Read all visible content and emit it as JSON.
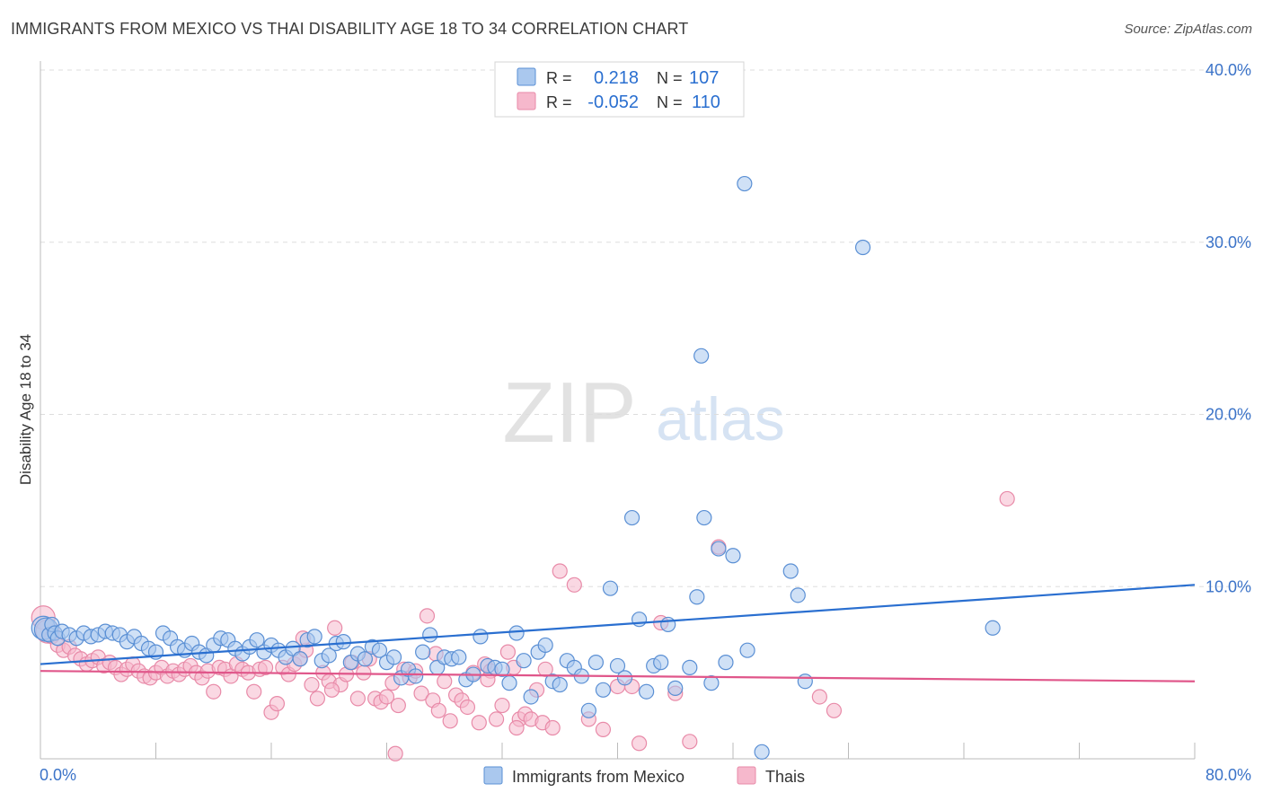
{
  "header": {
    "title": "IMMIGRANTS FROM MEXICO VS THAI DISABILITY AGE 18 TO 34 CORRELATION CHART",
    "source": "Source: ZipAtlas.com"
  },
  "watermark": {
    "zip": "ZIP",
    "atlas": "atlas"
  },
  "colors": {
    "blue_fill": "#aac8ee",
    "blue_stroke": "#5a8fd4",
    "blue_line": "#2a6fd0",
    "pink_fill": "#f6b8cc",
    "pink_stroke": "#e88aa8",
    "pink_line": "#e0568a",
    "tick_label": "#3b73c8",
    "grid": "#dddddd"
  },
  "legend_top": {
    "rows": [
      {
        "r_label": "R =",
        "r_value": "0.218",
        "n_label": "N =",
        "n_value": "107",
        "series": "blue"
      },
      {
        "r_label": "R =",
        "r_value": "-0.052",
        "n_label": "N =",
        "n_value": "110",
        "series": "pink"
      }
    ]
  },
  "chart_data": {
    "type": "scatter",
    "title": "IMMIGRANTS FROM MEXICO VS THAI DISABILITY AGE 18 TO 34 CORRELATION CHART",
    "xlabel": "",
    "ylabel": "Disability Age 18 to 34",
    "xlim": [
      0,
      80
    ],
    "ylim": [
      0,
      40
    ],
    "x_tick_labels": [
      "0.0%",
      "80.0%"
    ],
    "y_ticks": [
      10,
      20,
      30,
      40
    ],
    "y_tick_labels": [
      "10.0%",
      "20.0%",
      "30.0%",
      "40.0%"
    ],
    "grid": true,
    "legend_position": "bottom-center",
    "series": [
      {
        "name": "Immigrants from Mexico",
        "color": "#aac8ee",
        "trend": {
          "x": [
            0,
            80
          ],
          "y": [
            5.5,
            10.1
          ]
        },
        "points": [
          [
            0.2,
            7.6
          ],
          [
            0.4,
            7.5
          ],
          [
            0.6,
            7.2
          ],
          [
            0.8,
            7.8
          ],
          [
            1.0,
            7.3
          ],
          [
            1.2,
            7.0
          ],
          [
            1.5,
            7.4
          ],
          [
            2.0,
            7.2
          ],
          [
            2.5,
            7.0
          ],
          [
            3.0,
            7.3
          ],
          [
            3.5,
            7.1
          ],
          [
            4.0,
            7.2
          ],
          [
            4.5,
            7.4
          ],
          [
            5.0,
            7.3
          ],
          [
            5.5,
            7.2
          ],
          [
            6.0,
            6.8
          ],
          [
            6.5,
            7.1
          ],
          [
            7.0,
            6.7
          ],
          [
            7.5,
            6.4
          ],
          [
            8.0,
            6.2
          ],
          [
            8.5,
            7.3
          ],
          [
            9.0,
            7.0
          ],
          [
            9.5,
            6.5
          ],
          [
            10.0,
            6.3
          ],
          [
            10.5,
            6.7
          ],
          [
            11.0,
            6.2
          ],
          [
            11.5,
            6.0
          ],
          [
            12.0,
            6.6
          ],
          [
            12.5,
            7.0
          ],
          [
            13.0,
            6.9
          ],
          [
            13.5,
            6.4
          ],
          [
            14.0,
            6.1
          ],
          [
            14.5,
            6.5
          ],
          [
            15.0,
            6.9
          ],
          [
            15.5,
            6.2
          ],
          [
            16.0,
            6.6
          ],
          [
            16.5,
            6.3
          ],
          [
            17.0,
            5.9
          ],
          [
            17.5,
            6.4
          ],
          [
            18.0,
            5.8
          ],
          [
            18.5,
            6.9
          ],
          [
            19.0,
            7.1
          ],
          [
            19.5,
            5.7
          ],
          [
            20.0,
            6.0
          ],
          [
            20.5,
            6.7
          ],
          [
            21.0,
            6.8
          ],
          [
            21.5,
            5.6
          ],
          [
            22.0,
            6.1
          ],
          [
            22.5,
            5.8
          ],
          [
            23.0,
            6.5
          ],
          [
            23.5,
            6.3
          ],
          [
            24.0,
            5.6
          ],
          [
            24.5,
            5.9
          ],
          [
            25.0,
            4.7
          ],
          [
            25.5,
            5.2
          ],
          [
            26.0,
            4.8
          ],
          [
            26.5,
            6.2
          ],
          [
            27.0,
            7.2
          ],
          [
            27.5,
            5.3
          ],
          [
            28.0,
            5.9
          ],
          [
            28.5,
            5.8
          ],
          [
            29.0,
            5.9
          ],
          [
            29.5,
            4.6
          ],
          [
            30.0,
            4.9
          ],
          [
            30.5,
            7.1
          ],
          [
            31.0,
            5.4
          ],
          [
            31.5,
            5.3
          ],
          [
            32.0,
            5.2
          ],
          [
            32.5,
            4.4
          ],
          [
            33.0,
            7.3
          ],
          [
            33.5,
            5.7
          ],
          [
            34.0,
            3.6
          ],
          [
            34.5,
            6.2
          ],
          [
            35.0,
            6.6
          ],
          [
            35.5,
            4.5
          ],
          [
            36.0,
            4.3
          ],
          [
            36.5,
            5.7
          ],
          [
            37.0,
            5.3
          ],
          [
            37.5,
            4.8
          ],
          [
            38.0,
            2.8
          ],
          [
            38.5,
            5.6
          ],
          [
            39.0,
            4.0
          ],
          [
            39.5,
            9.9
          ],
          [
            40.0,
            5.4
          ],
          [
            40.5,
            4.7
          ],
          [
            41.0,
            14.0
          ],
          [
            41.5,
            8.1
          ],
          [
            42.0,
            3.9
          ],
          [
            42.5,
            5.4
          ],
          [
            43.0,
            5.6
          ],
          [
            43.5,
            7.8
          ],
          [
            44.0,
            4.1
          ],
          [
            45.0,
            5.3
          ],
          [
            45.5,
            9.4
          ],
          [
            46.0,
            14.0
          ],
          [
            46.5,
            4.4
          ],
          [
            47.0,
            12.2
          ],
          [
            47.5,
            5.6
          ],
          [
            48.0,
            11.8
          ],
          [
            49.0,
            6.3
          ],
          [
            52.0,
            10.9
          ],
          [
            52.5,
            9.5
          ],
          [
            53.0,
            4.5
          ],
          [
            45.8,
            23.4
          ],
          [
            48.8,
            33.4
          ],
          [
            57.0,
            29.7
          ],
          [
            66.0,
            7.6
          ],
          [
            50.0,
            0.4
          ]
        ]
      },
      {
        "name": "Thais",
        "color": "#f6b8cc",
        "trend": {
          "x": [
            0,
            80
          ],
          "y": [
            5.1,
            4.5
          ]
        },
        "points": [
          [
            0.2,
            8.2
          ],
          [
            0.5,
            7.4
          ],
          [
            0.8,
            7.1
          ],
          [
            1.2,
            6.6
          ],
          [
            1.6,
            6.3
          ],
          [
            2.0,
            6.5
          ],
          [
            2.4,
            6.0
          ],
          [
            2.8,
            5.8
          ],
          [
            3.2,
            5.5
          ],
          [
            3.6,
            5.7
          ],
          [
            4.0,
            5.9
          ],
          [
            4.4,
            5.4
          ],
          [
            4.8,
            5.6
          ],
          [
            5.2,
            5.3
          ],
          [
            5.6,
            4.9
          ],
          [
            6.0,
            5.2
          ],
          [
            6.4,
            5.5
          ],
          [
            6.8,
            5.1
          ],
          [
            7.2,
            4.8
          ],
          [
            7.6,
            4.7
          ],
          [
            8.0,
            5.0
          ],
          [
            8.4,
            5.3
          ],
          [
            8.8,
            4.8
          ],
          [
            9.2,
            5.1
          ],
          [
            9.6,
            4.9
          ],
          [
            10.0,
            5.2
          ],
          [
            10.4,
            5.4
          ],
          [
            10.8,
            5.0
          ],
          [
            11.2,
            4.7
          ],
          [
            11.6,
            5.1
          ],
          [
            12.0,
            3.9
          ],
          [
            12.4,
            5.3
          ],
          [
            12.8,
            5.2
          ],
          [
            13.2,
            4.8
          ],
          [
            13.6,
            5.5
          ],
          [
            14.0,
            5.2
          ],
          [
            14.4,
            5.0
          ],
          [
            14.8,
            3.9
          ],
          [
            15.2,
            5.2
          ],
          [
            15.6,
            5.3
          ],
          [
            16.0,
            2.7
          ],
          [
            16.4,
            3.2
          ],
          [
            16.8,
            5.3
          ],
          [
            17.2,
            4.9
          ],
          [
            17.6,
            5.5
          ],
          [
            18.0,
            5.8
          ],
          [
            18.4,
            6.3
          ],
          [
            18.8,
            4.3
          ],
          [
            19.2,
            3.5
          ],
          [
            19.6,
            5.0
          ],
          [
            20.0,
            4.5
          ],
          [
            20.4,
            7.6
          ],
          [
            20.8,
            4.3
          ],
          [
            21.2,
            4.9
          ],
          [
            21.6,
            5.6
          ],
          [
            22.0,
            3.5
          ],
          [
            22.4,
            5.0
          ],
          [
            22.8,
            5.8
          ],
          [
            23.2,
            3.5
          ],
          [
            23.6,
            3.3
          ],
          [
            24.0,
            3.6
          ],
          [
            24.4,
            4.4
          ],
          [
            24.8,
            3.1
          ],
          [
            25.2,
            5.2
          ],
          [
            25.6,
            4.7
          ],
          [
            26.0,
            5.1
          ],
          [
            26.4,
            3.8
          ],
          [
            26.8,
            8.3
          ],
          [
            27.2,
            3.4
          ],
          [
            27.6,
            2.8
          ],
          [
            28.0,
            4.5
          ],
          [
            28.4,
            2.2
          ],
          [
            28.8,
            3.7
          ],
          [
            29.2,
            3.4
          ],
          [
            29.6,
            3.0
          ],
          [
            30.0,
            5.0
          ],
          [
            30.4,
            2.1
          ],
          [
            30.8,
            5.5
          ],
          [
            31.2,
            5.1
          ],
          [
            31.6,
            2.3
          ],
          [
            32.0,
            3.1
          ],
          [
            32.4,
            6.2
          ],
          [
            32.8,
            5.3
          ],
          [
            33.2,
            2.3
          ],
          [
            33.6,
            2.6
          ],
          [
            34.0,
            2.3
          ],
          [
            34.4,
            4.0
          ],
          [
            34.8,
            2.1
          ],
          [
            35.0,
            5.2
          ],
          [
            36.0,
            10.9
          ],
          [
            37.0,
            10.1
          ],
          [
            38.0,
            2.3
          ],
          [
            39.0,
            1.7
          ],
          [
            40.0,
            4.2
          ],
          [
            41.0,
            4.2
          ],
          [
            43.0,
            7.9
          ],
          [
            44.0,
            3.8
          ],
          [
            45.0,
            1.0
          ],
          [
            47.0,
            12.3
          ],
          [
            54.0,
            3.6
          ],
          [
            55.0,
            2.8
          ],
          [
            67.0,
            15.1
          ],
          [
            24.6,
            0.3
          ],
          [
            33.0,
            1.8
          ],
          [
            35.5,
            1.8
          ],
          [
            41.5,
            0.9
          ],
          [
            20.2,
            4.0
          ],
          [
            18.2,
            7.0
          ],
          [
            27.4,
            6.1
          ],
          [
            31.0,
            4.6
          ]
        ]
      }
    ]
  },
  "axis": {
    "ylabel": "Disability Age 18 to 34"
  },
  "legend_bottom": {
    "items": [
      "Immigrants from Mexico",
      "Thais"
    ]
  }
}
